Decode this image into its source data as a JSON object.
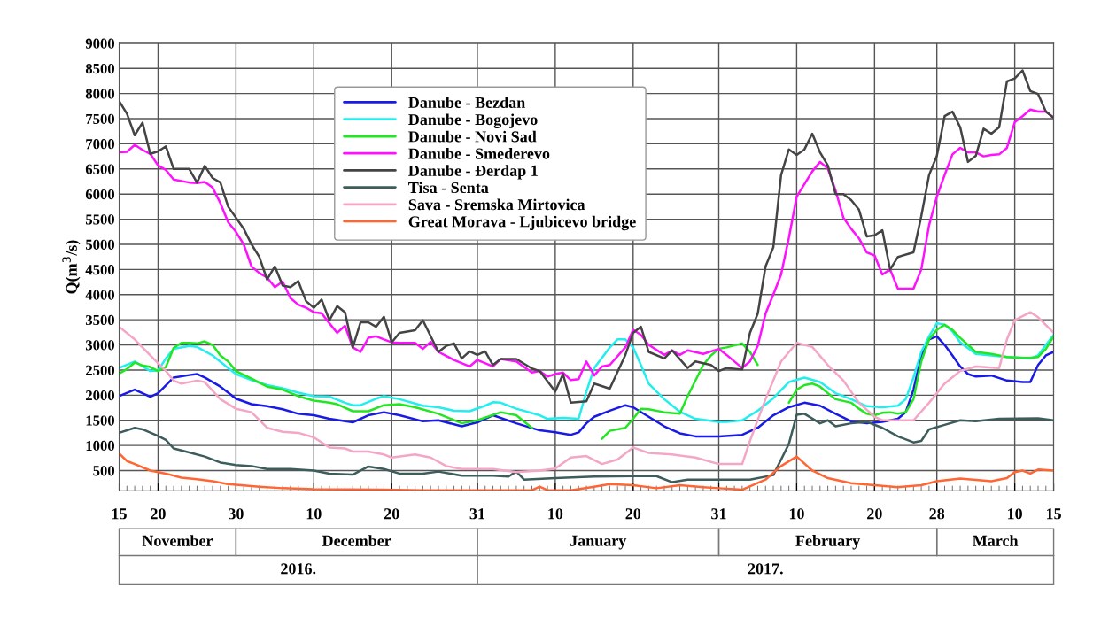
{
  "chart_data": {
    "type": "line",
    "ylabel": "Q(m$^{3}$/s)",
    "xlim": [
      "2016-11-15",
      "2017-03-15"
    ],
    "xticks": [
      {
        "value": "2016-11-15",
        "label": "15"
      },
      {
        "value": "2016-11-20",
        "label": "20"
      },
      {
        "value": "2016-11-30",
        "label": "30"
      },
      {
        "value": "2016-12-10",
        "label": "10"
      },
      {
        "value": "2016-12-20",
        "label": "20"
      },
      {
        "value": "2016-12-31",
        "label": "31"
      },
      {
        "value": "2017-01-10",
        "label": "10"
      },
      {
        "value": "2017-01-20",
        "label": "20"
      },
      {
        "value": "2017-01-31",
        "label": "31"
      },
      {
        "value": "2017-02-10",
        "label": "10"
      },
      {
        "value": "2017-02-20",
        "label": "20"
      },
      {
        "value": "2017-02-28",
        "label": "28"
      },
      {
        "value": "2017-03-10",
        "label": "10"
      },
      {
        "value": "2017-03-15",
        "label": "15"
      }
    ],
    "ylim": [
      100,
      9000
    ],
    "yticks": [
      500,
      1000,
      1500,
      2000,
      2500,
      3000,
      3500,
      4000,
      4500,
      5000,
      5500,
      6000,
      6500,
      7000,
      7500,
      8000,
      8500,
      9000
    ],
    "grid": true,
    "legend": "top",
    "marker": "none",
    "line_style": "solid",
    "annotations": [
      "November",
      "December",
      "January",
      "February",
      "March",
      "2016.",
      "2017."
    ],
    "series": [
      {
        "name": "Danube - Bezdan",
        "color": "#1a1ae6",
        "x": [
          "2016-11-15",
          "2016-11-17",
          "2016-11-19",
          "2016-11-20",
          "2016-11-22",
          "2016-11-24",
          "2016-11-25",
          "2016-11-26",
          "2016-11-28",
          "2016-11-30",
          "2016-12-02",
          "2016-12-04",
          "2016-12-06",
          "2016-12-08",
          "2016-12-10",
          "2016-12-12",
          "2016-12-15",
          "2016-12-17",
          "2016-12-19",
          "2016-12-21",
          "2016-12-24",
          "2016-12-26",
          "2016-12-29",
          "2016-12-31",
          "2017-01-02",
          "2017-01-05",
          "2017-01-08",
          "2017-01-10",
          "2017-01-12",
          "2017-01-13",
          "2017-01-14",
          "2017-01-15",
          "2017-01-17",
          "2017-01-19",
          "2017-01-20",
          "2017-01-22",
          "2017-01-24",
          "2017-01-26",
          "2017-01-28",
          "2017-01-31",
          "2017-02-03",
          "2017-02-05",
          "2017-02-07",
          "2017-02-09",
          "2017-02-11",
          "2017-02-13",
          "2017-02-15",
          "2017-02-17",
          "2017-02-19",
          "2017-02-21",
          "2017-02-23",
          "2017-02-24",
          "2017-02-25",
          "2017-02-26",
          "2017-02-27",
          "2017-02-28",
          "2017-03-01",
          "2017-03-02",
          "2017-03-03",
          "2017-03-04",
          "2017-03-05",
          "2017-03-07",
          "2017-03-09",
          "2017-03-11",
          "2017-03-12",
          "2017-03-13",
          "2017-03-14",
          "2017-03-15"
        ],
        "values": [
          1980,
          2110,
          1970,
          2040,
          2350,
          2400,
          2420,
          2350,
          2170,
          1930,
          1820,
          1780,
          1720,
          1630,
          1600,
          1530,
          1460,
          1600,
          1660,
          1600,
          1480,
          1500,
          1380,
          1460,
          1600,
          1440,
          1300,
          1260,
          1210,
          1260,
          1440,
          1570,
          1690,
          1800,
          1760,
          1570,
          1380,
          1240,
          1180,
          1180,
          1210,
          1350,
          1600,
          1760,
          1850,
          1790,
          1630,
          1480,
          1440,
          1470,
          1530,
          1660,
          2110,
          2790,
          3110,
          3170,
          3000,
          2790,
          2570,
          2420,
          2370,
          2390,
          2290,
          2260,
          2260,
          2600,
          2790,
          2860
        ]
      },
      {
        "name": "Danube - Bogojevo",
        "color": "#22eeee",
        "x": [
          "2016-11-15",
          "2016-11-17",
          "2016-11-19",
          "2016-11-20",
          "2016-11-21",
          "2016-11-22",
          "2016-11-24",
          "2016-11-25",
          "2016-11-27",
          "2016-11-29",
          "2016-11-30",
          "2016-12-02",
          "2016-12-04",
          "2016-12-06",
          "2016-12-08",
          "2016-12-10",
          "2016-12-12",
          "2016-12-14",
          "2016-12-15",
          "2016-12-16",
          "2016-12-18",
          "2016-12-19",
          "2016-12-21",
          "2016-12-24",
          "2016-12-26",
          "2016-12-28",
          "2016-12-30",
          "2017-01-01",
          "2017-01-02",
          "2017-01-03",
          "2017-01-05",
          "2017-01-08",
          "2017-01-09",
          "2017-01-11",
          "2017-01-13",
          "2017-01-14",
          "2017-01-15",
          "2017-01-17",
          "2017-01-18",
          "2017-01-19",
          "2017-01-20",
          "2017-01-21",
          "2017-01-22",
          "2017-01-24",
          "2017-01-26",
          "2017-01-28",
          "2017-01-31",
          "2017-02-01",
          "2017-02-03",
          "2017-02-05",
          "2017-02-07",
          "2017-02-09",
          "2017-02-11",
          "2017-02-13",
          "2017-02-15",
          "2017-02-17",
          "2017-02-19",
          "2017-02-21",
          "2017-02-23",
          "2017-02-24",
          "2017-02-25",
          "2017-02-26",
          "2017-02-27",
          "2017-02-28",
          "2017-03-01",
          "2017-03-02",
          "2017-03-03",
          "2017-03-05",
          "2017-03-07",
          "2017-03-09",
          "2017-03-11",
          "2017-03-12",
          "2017-03-13",
          "2017-03-14",
          "2017-03-15"
        ],
        "values": [
          2540,
          2670,
          2480,
          2490,
          2730,
          2920,
          2980,
          2960,
          2790,
          2540,
          2420,
          2300,
          2200,
          2140,
          2050,
          1980,
          1970,
          1850,
          1800,
          1800,
          1930,
          1980,
          1920,
          1790,
          1760,
          1690,
          1680,
          1790,
          1860,
          1850,
          1730,
          1600,
          1530,
          1550,
          1530,
          2070,
          2540,
          2950,
          3110,
          3110,
          2950,
          2600,
          2230,
          1920,
          1670,
          1530,
          1470,
          1470,
          1500,
          1690,
          1940,
          2260,
          2350,
          2260,
          2040,
          1920,
          1780,
          1760,
          1790,
          1920,
          2350,
          2860,
          3170,
          3430,
          3400,
          3270,
          3050,
          2820,
          2790,
          2760,
          2740,
          2730,
          2790,
          3000,
          3200
        ]
      },
      {
        "name": "Danube - Novi Sad",
        "color": "#22e622",
        "x": [
          "2016-11-15",
          "2016-11-16",
          "2016-11-17",
          "2016-11-18",
          "2016-11-19",
          "2016-11-20",
          "2016-11-21",
          "2016-11-22",
          "2016-11-23",
          "2016-11-24",
          "2016-11-25",
          "2016-11-26",
          "2016-11-27",
          "2016-11-28",
          "2016-11-29",
          "2016-11-30",
          "2016-12-02",
          "2016-12-04",
          "2016-12-06",
          "2016-12-08",
          "2016-12-10",
          "2016-12-12",
          "2016-12-13",
          "2016-12-15",
          "2016-12-17",
          "2016-12-19",
          "2016-12-21",
          "2016-12-23",
          "2016-12-26",
          "2016-12-29",
          "2016-12-31",
          "2017-01-03",
          "2017-01-05",
          "2017-01-07",
          "2017-01-12",
          "2017-01-16",
          "2017-01-17",
          "2017-01-19",
          "2017-01-20",
          "2017-01-21",
          "2017-01-22",
          "2017-01-24",
          "2017-01-26",
          "2017-01-27",
          "2017-01-29",
          "2017-01-30",
          "2017-01-31",
          "2017-02-01",
          "2017-02-03",
          "2017-02-04",
          "2017-02-05",
          "2017-02-07",
          "2017-02-09",
          "2017-02-10",
          "2017-02-11",
          "2017-02-12",
          "2017-02-13",
          "2017-02-14",
          "2017-02-15",
          "2017-02-17",
          "2017-02-18",
          "2017-02-19",
          "2017-02-20",
          "2017-02-21",
          "2017-02-22",
          "2017-02-23",
          "2017-02-24",
          "2017-02-25",
          "2017-02-26",
          "2017-02-27",
          "2017-02-28",
          "2017-03-01",
          "2017-03-02",
          "2017-03-03",
          "2017-03-05",
          "2017-03-07",
          "2017-03-09",
          "2017-03-11",
          "2017-03-12",
          "2017-03-13",
          "2017-03-14",
          "2017-03-15"
        ],
        "values": [
          2430,
          2520,
          2650,
          2590,
          2560,
          2480,
          2560,
          2940,
          3040,
          3040,
          3030,
          3070,
          3000,
          2790,
          2670,
          2480,
          2330,
          2170,
          2110,
          1980,
          1890,
          1850,
          1820,
          1680,
          1680,
          1800,
          1820,
          1760,
          1630,
          1440,
          1500,
          1660,
          1600,
          1350,
          null,
          1130,
          1290,
          1350,
          1530,
          1730,
          1720,
          1660,
          1630,
          1980,
          2600,
          2790,
          2920,
          2950,
          3030,
          2860,
          2600,
          null,
          1850,
          2110,
          2200,
          2230,
          2170,
          2040,
          1920,
          1850,
          1730,
          1630,
          1600,
          1650,
          1660,
          1630,
          1660,
          1920,
          2670,
          3110,
          3300,
          3400,
          3300,
          3140,
          2860,
          2820,
          2760,
          2740,
          2740,
          2760,
          2920,
          3170
        ]
      },
      {
        "name": "Danube - Smederevo",
        "color": "#ff11ff",
        "x": [
          "2016-11-15",
          "2016-11-16",
          "2016-11-17",
          "2016-11-18",
          "2016-11-19",
          "2016-11-20",
          "2016-11-21",
          "2016-11-22",
          "2016-11-24",
          "2016-11-25",
          "2016-11-26",
          "2016-11-27",
          "2016-11-28",
          "2016-11-29",
          "2016-11-30",
          "2016-12-01",
          "2016-12-02",
          "2016-12-03",
          "2016-12-04",
          "2016-12-05",
          "2016-12-06",
          "2016-12-07",
          "2016-12-08",
          "2016-12-09",
          "2016-12-10",
          "2016-12-11",
          "2016-12-12",
          "2016-12-13",
          "2016-12-14",
          "2016-12-15",
          "2016-12-16",
          "2016-12-17",
          "2016-12-18",
          "2016-12-19",
          "2016-12-20",
          "2016-12-21",
          "2016-12-23",
          "2016-12-24",
          "2016-12-25",
          "2016-12-26",
          "2016-12-28",
          "2016-12-30",
          "2016-12-31",
          "2017-01-02",
          "2017-01-03",
          "2017-01-05",
          "2017-01-07",
          "2017-01-08",
          "2017-01-09",
          "2017-01-10",
          "2017-01-11",
          "2017-01-12",
          "2017-01-13",
          "2017-01-14",
          "2017-01-15",
          "2017-01-16",
          "2017-01-17",
          "2017-01-19",
          "2017-01-20",
          "2017-01-21",
          "2017-01-22",
          "2017-01-24",
          "2017-01-25",
          "2017-01-26",
          "2017-01-27",
          "2017-01-29",
          "2017-01-31",
          "2017-02-01",
          "2017-02-03",
          "2017-02-04",
          "2017-02-05",
          "2017-02-06",
          "2017-02-07",
          "2017-02-08",
          "2017-02-09",
          "2017-02-10",
          "2017-02-11",
          "2017-02-12",
          "2017-02-13",
          "2017-02-14",
          "2017-02-15",
          "2017-02-16",
          "2017-02-17",
          "2017-02-18",
          "2017-02-19",
          "2017-02-20",
          "2017-02-21",
          "2017-02-22",
          "2017-02-23",
          "2017-02-25",
          "2017-02-26",
          "2017-02-27",
          "2017-02-28",
          "2017-03-01",
          "2017-03-02",
          "2017-03-03",
          "2017-03-04",
          "2017-03-05",
          "2017-03-06",
          "2017-03-07",
          "2017-03-08",
          "2017-03-09",
          "2017-03-10",
          "2017-03-11",
          "2017-03-12",
          "2017-03-13",
          "2017-03-14",
          "2017-03-15"
        ],
        "values": [
          6830,
          6840,
          6980,
          6880,
          6800,
          6570,
          6480,
          6290,
          6230,
          6220,
          6240,
          6130,
          5820,
          5440,
          5250,
          5000,
          4560,
          4430,
          4340,
          4150,
          4260,
          3930,
          3800,
          3740,
          3650,
          3630,
          3430,
          3240,
          3380,
          2950,
          2860,
          3140,
          3170,
          3110,
          3050,
          3040,
          3040,
          2920,
          3060,
          2860,
          2700,
          2570,
          2700,
          2570,
          2720,
          2670,
          2450,
          2480,
          2370,
          2420,
          2450,
          2300,
          2320,
          2670,
          2390,
          2570,
          2600,
          2950,
          3300,
          3200,
          3000,
          2800,
          2890,
          2800,
          2890,
          2820,
          2920,
          2800,
          2540,
          2670,
          2980,
          3620,
          4000,
          4400,
          5130,
          5950,
          6200,
          6450,
          6640,
          6510,
          6070,
          5530,
          5310,
          5120,
          4840,
          4780,
          4400,
          4500,
          4120,
          4120,
          4500,
          5380,
          5950,
          6380,
          6790,
          6920,
          6830,
          6830,
          6750,
          6780,
          6790,
          6920,
          7430,
          7550,
          7680,
          7640,
          7640,
          7520
        ]
      },
      {
        "name": "Danube - Đerdap 1",
        "color": "#444444",
        "x": [
          "2016-11-15",
          "2016-11-16",
          "2016-11-17",
          "2016-11-18",
          "2016-11-19",
          "2016-11-20",
          "2016-11-21",
          "2016-11-22",
          "2016-11-23",
          "2016-11-24",
          "2016-11-25",
          "2016-11-26",
          "2016-11-27",
          "2016-11-28",
          "2016-11-29",
          "2016-11-30",
          "2016-12-01",
          "2016-12-02",
          "2016-12-03",
          "2016-12-04",
          "2016-12-05",
          "2016-12-06",
          "2016-12-07",
          "2016-12-08",
          "2016-12-09",
          "2016-12-10",
          "2016-12-11",
          "2016-12-12",
          "2016-12-13",
          "2016-12-14",
          "2016-12-15",
          "2016-12-16",
          "2016-12-17",
          "2016-12-18",
          "2016-12-19",
          "2016-12-20",
          "2016-12-21",
          "2016-12-23",
          "2016-12-24",
          "2016-12-26",
          "2016-12-27",
          "2016-12-28",
          "2016-12-29",
          "2016-12-30",
          "2016-12-31",
          "2017-01-01",
          "2017-01-02",
          "2017-01-03",
          "2017-01-05",
          "2017-01-07",
          "2017-01-08",
          "2017-01-10",
          "2017-01-11",
          "2017-01-12",
          "2017-01-14",
          "2017-01-15",
          "2017-01-17",
          "2017-01-19",
          "2017-01-20",
          "2017-01-21",
          "2017-01-22",
          "2017-01-24",
          "2017-01-25",
          "2017-01-27",
          "2017-01-28",
          "2017-01-30",
          "2017-01-31",
          "2017-02-01",
          "2017-02-03",
          "2017-02-04",
          "2017-02-05",
          "2017-02-06",
          "2017-02-07",
          "2017-02-08",
          "2017-02-09",
          "2017-02-10",
          "2017-02-11",
          "2017-02-12",
          "2017-02-13",
          "2017-02-14",
          "2017-02-15",
          "2017-02-16",
          "2017-02-17",
          "2017-02-18",
          "2017-02-19",
          "2017-02-20",
          "2017-02-21",
          "2017-02-22",
          "2017-02-23",
          "2017-02-25",
          "2017-02-26",
          "2017-02-27",
          "2017-02-28",
          "2017-03-01",
          "2017-03-02",
          "2017-03-03",
          "2017-03-04",
          "2017-03-05",
          "2017-03-06",
          "2017-03-07",
          "2017-03-08",
          "2017-03-09",
          "2017-03-10",
          "2017-03-11",
          "2017-03-12",
          "2017-03-13",
          "2017-03-14",
          "2017-03-15"
        ],
        "values": [
          7850,
          7600,
          7170,
          7420,
          6800,
          6850,
          6950,
          6500,
          6500,
          6500,
          6230,
          6560,
          6320,
          6230,
          5750,
          5530,
          5310,
          5000,
          4750,
          4300,
          4560,
          4180,
          4150,
          4270,
          3870,
          3740,
          3900,
          3490,
          3770,
          3650,
          2950,
          3450,
          3450,
          3360,
          3560,
          3050,
          3240,
          3290,
          3490,
          2860,
          2980,
          3030,
          2730,
          2870,
          2800,
          2870,
          2600,
          2720,
          2720,
          2530,
          2480,
          2070,
          2420,
          1850,
          1880,
          2230,
          2130,
          2800,
          3240,
          3360,
          2860,
          2730,
          2890,
          2540,
          2670,
          2600,
          2480,
          2540,
          2510,
          3240,
          3620,
          4560,
          4940,
          6380,
          6890,
          6780,
          6890,
          7200,
          6830,
          6570,
          6000,
          6000,
          5880,
          5690,
          5160,
          5180,
          5280,
          4500,
          4750,
          4840,
          5560,
          6380,
          6760,
          7550,
          7640,
          7330,
          6640,
          6760,
          7300,
          7200,
          7330,
          8240,
          8300,
          8460,
          8050,
          7990,
          7640,
          7520
        ]
      },
      {
        "name": "Tisa - Senta",
        "color": "#3d5c5c",
        "x": [
          "2016-11-15",
          "2016-11-17",
          "2016-11-18",
          "2016-11-20",
          "2016-11-21",
          "2016-11-22",
          "2016-11-24",
          "2016-11-26",
          "2016-11-28",
          "2016-11-30",
          "2016-12-02",
          "2016-12-04",
          "2016-12-07",
          "2016-12-10",
          "2016-12-12",
          "2016-12-15",
          "2016-12-17",
          "2016-12-19",
          "2016-12-21",
          "2016-12-24",
          "2016-12-26",
          "2016-12-29",
          "2017-01-02",
          "2017-01-04",
          "2017-01-05",
          "2017-01-06",
          "2017-01-10",
          "2017-01-15",
          "2017-01-20",
          "2017-01-23",
          "2017-01-25",
          "2017-01-27",
          "2017-01-31",
          "2017-02-04",
          "2017-02-07",
          "2017-02-09",
          "2017-02-10",
          "2017-02-11",
          "2017-02-13",
          "2017-02-14",
          "2017-02-15",
          "2017-02-17",
          "2017-02-19",
          "2017-02-21",
          "2017-02-23",
          "2017-02-25",
          "2017-02-26",
          "2017-02-27",
          "2017-03-01",
          "2017-03-03",
          "2017-03-05",
          "2017-03-08",
          "2017-03-13",
          "2017-03-15"
        ],
        "values": [
          1250,
          1350,
          1320,
          1190,
          1110,
          940,
          860,
          780,
          660,
          610,
          590,
          530,
          530,
          500,
          440,
          420,
          580,
          530,
          440,
          440,
          480,
          400,
          400,
          380,
          480,
          320,
          350,
          380,
          390,
          390,
          270,
          320,
          320,
          320,
          410,
          1030,
          1610,
          1630,
          1440,
          1500,
          1380,
          1440,
          1470,
          1350,
          1180,
          1060,
          1090,
          1320,
          1410,
          1500,
          1480,
          1530,
          1540,
          1500
        ]
      },
      {
        "name": "Sava - Sremska Mirtovica",
        "color": "#f4a6c6",
        "x": [
          "2016-11-15",
          "2016-11-17",
          "2016-11-19",
          "2016-11-21",
          "2016-11-22",
          "2016-11-23",
          "2016-11-25",
          "2016-11-26",
          "2016-11-28",
          "2016-11-30",
          "2016-12-02",
          "2016-12-04",
          "2016-12-06",
          "2016-12-08",
          "2016-12-10",
          "2016-12-12",
          "2016-12-14",
          "2016-12-15",
          "2016-12-17",
          "2016-12-19",
          "2016-12-20",
          "2016-12-23",
          "2016-12-25",
          "2016-12-27",
          "2016-12-29",
          "2017-01-02",
          "2017-01-05",
          "2017-01-08",
          "2017-01-10",
          "2017-01-12",
          "2017-01-14",
          "2017-01-16",
          "2017-01-18",
          "2017-01-20",
          "2017-01-22",
          "2017-01-25",
          "2017-01-28",
          "2017-01-31",
          "2017-02-03",
          "2017-02-04",
          "2017-02-06",
          "2017-02-08",
          "2017-02-10",
          "2017-02-12",
          "2017-02-14",
          "2017-02-16",
          "2017-02-18",
          "2017-02-20",
          "2017-02-21",
          "2017-02-25",
          "2017-02-27",
          "2017-03-01",
          "2017-03-03",
          "2017-03-05",
          "2017-03-08",
          "2017-03-09",
          "2017-03-10",
          "2017-03-12",
          "2017-03-13",
          "2017-03-15"
        ],
        "values": [
          3360,
          3110,
          2790,
          2480,
          2290,
          2230,
          2290,
          2260,
          1920,
          1730,
          1660,
          1350,
          1270,
          1250,
          1160,
          960,
          940,
          880,
          880,
          820,
          760,
          820,
          760,
          590,
          530,
          530,
          470,
          500,
          540,
          760,
          790,
          630,
          720,
          960,
          850,
          820,
          760,
          630,
          630,
          1090,
          1920,
          2670,
          3040,
          2960,
          2600,
          2290,
          1850,
          1570,
          1500,
          1500,
          1850,
          2230,
          2480,
          2570,
          2540,
          3110,
          3490,
          3650,
          3550,
          3240
        ]
      },
      {
        "name": "Great Morava - Ljubicevo bridge",
        "color": "#ff6633",
        "x": [
          "2016-11-15",
          "2016-11-16",
          "2016-11-17",
          "2016-11-19",
          "2016-11-21",
          "2016-11-23",
          "2016-11-25",
          "2016-11-27",
          "2016-11-29",
          "2016-11-30",
          "2016-12-03",
          "2016-12-06",
          "2016-12-10",
          "2016-12-19",
          "2016-12-24",
          "2016-12-31",
          "2017-01-07",
          "2017-01-08",
          "2017-01-09",
          "2017-01-12",
          "2017-01-15",
          "2017-01-17",
          "2017-01-20",
          "2017-01-23",
          "2017-01-26",
          "2017-01-29",
          "2017-01-31",
          "2017-02-03",
          "2017-02-06",
          "2017-02-08",
          "2017-02-10",
          "2017-02-12",
          "2017-02-14",
          "2017-02-17",
          "2017-02-20",
          "2017-02-23",
          "2017-02-26",
          "2017-02-28",
          "2017-03-03",
          "2017-03-07",
          "2017-03-09",
          "2017-03-10",
          "2017-03-11",
          "2017-03-12",
          "2017-03-13",
          "2017-03-15"
        ],
        "values": [
          840,
          690,
          630,
          500,
          440,
          360,
          330,
          290,
          230,
          220,
          180,
          150,
          130,
          120,
          110,
          110,
          110,
          180,
          110,
          110,
          180,
          230,
          210,
          150,
          210,
          170,
          150,
          120,
          320,
          590,
          780,
          500,
          350,
          250,
          210,
          170,
          210,
          290,
          340,
          290,
          350,
          470,
          500,
          440,
          520,
          500
        ]
      }
    ]
  }
}
